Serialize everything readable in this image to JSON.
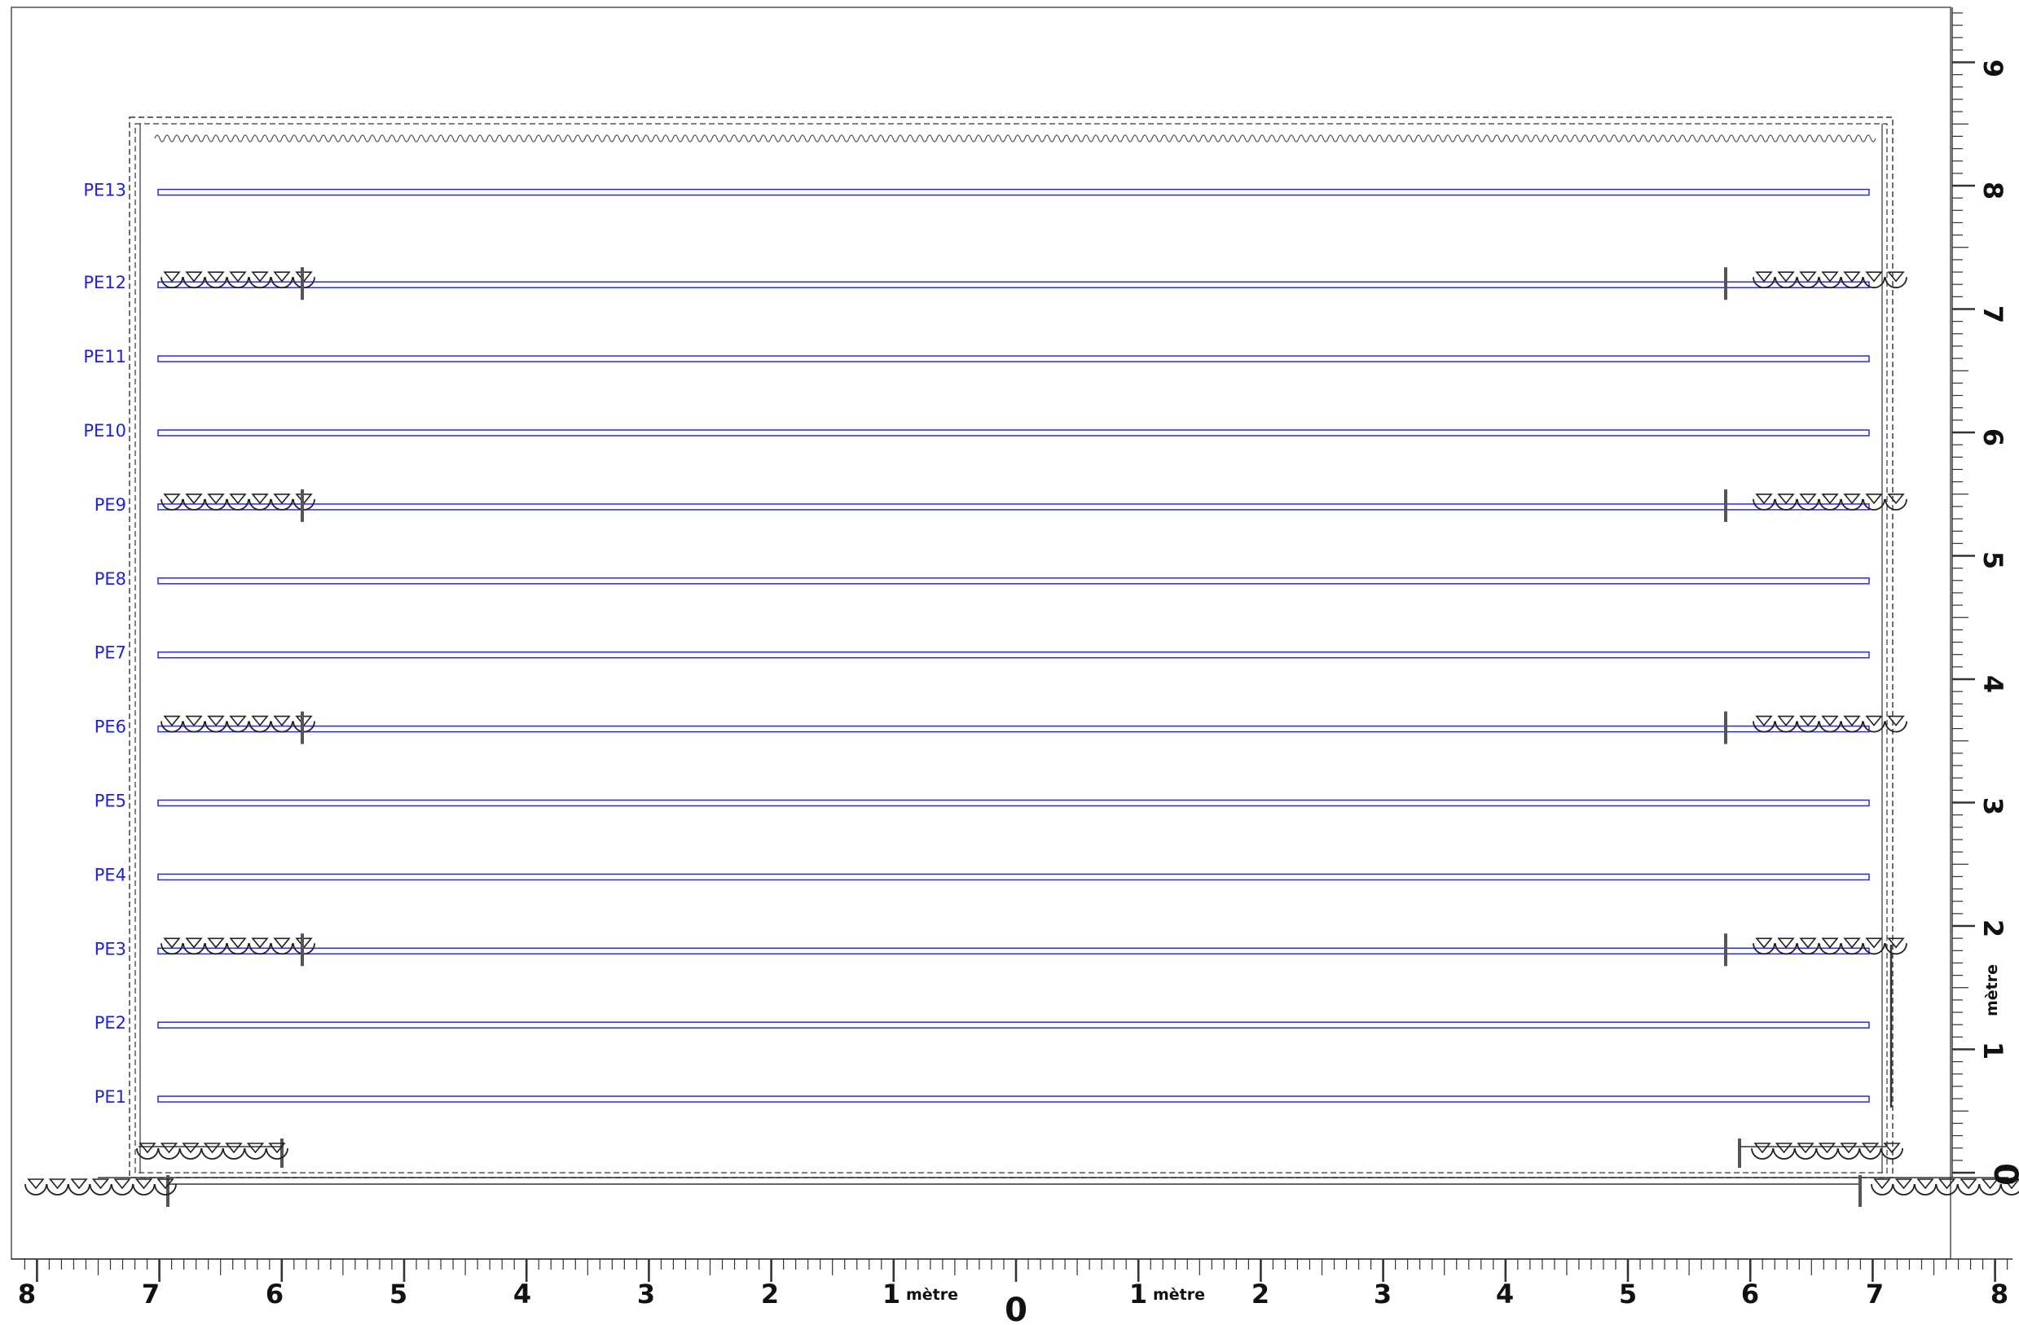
{
  "colors": {
    "shelf": "#2a2ad8",
    "frame": "#555555",
    "ink": "#222222",
    "label": "#2020d8"
  },
  "shelves": [
    {
      "label": "PE1",
      "level": 0.6,
      "hooks": false
    },
    {
      "label": "PE2",
      "level": 1.2,
      "hooks": false
    },
    {
      "label": "PE3",
      "level": 1.8,
      "hooks": true
    },
    {
      "label": "PE4",
      "level": 2.4,
      "hooks": false
    },
    {
      "label": "PE5",
      "level": 3.0,
      "hooks": false
    },
    {
      "label": "PE6",
      "level": 3.6,
      "hooks": true
    },
    {
      "label": "PE7",
      "level": 4.2,
      "hooks": false
    },
    {
      "label": "PE8",
      "level": 4.8,
      "hooks": false
    },
    {
      "label": "PE9",
      "level": 5.4,
      "hooks": true
    },
    {
      "label": "PE10",
      "level": 6.0,
      "hooks": false
    },
    {
      "label": "PE11",
      "level": 6.6,
      "hooks": false
    },
    {
      "label": "PE12",
      "level": 7.2,
      "hooks": true
    },
    {
      "label": "PE13",
      "level": 7.95,
      "hooks": false
    }
  ],
  "bottom_ruler": {
    "left_labels": [
      "8",
      "7",
      "6",
      "5",
      "4",
      "3",
      "2",
      "1"
    ],
    "zero_label": "0",
    "right_labels": [
      "1",
      "2",
      "3",
      "4",
      "5",
      "6",
      "7",
      "8"
    ],
    "unit_left": "mètre",
    "unit_right": "mètre"
  },
  "right_ruler": {
    "zero_label": "0",
    "labels": [
      "1",
      "2",
      "3",
      "4",
      "5",
      "6",
      "7",
      "8",
      "9"
    ],
    "unit": "mètre"
  },
  "icons": {
    "hook": "hook-ring-icon",
    "wave": "wave-spring-icon"
  }
}
